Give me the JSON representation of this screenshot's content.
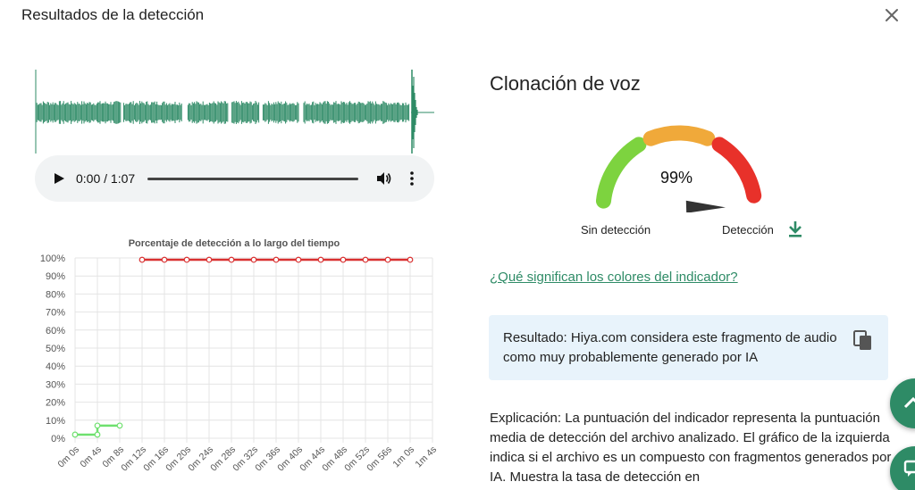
{
  "modal": {
    "title": "Resultados de la detección"
  },
  "player": {
    "time": "0:00 / 1:07"
  },
  "chart_data": {
    "type": "line",
    "title": "Porcentaje de detección a lo largo del tiempo",
    "xlabel": "",
    "ylabel": "",
    "categories": [
      "0m 0s",
      "0m 4s",
      "0m 8s",
      "0m 12s",
      "0m 16s",
      "0m 20s",
      "0m 24s",
      "0m 28s",
      "0m 32s",
      "0m 36s",
      "0m 40s",
      "0m 44s",
      "0m 48s",
      "0m 52s",
      "0m 56s",
      "1m 0s",
      "1m 4s"
    ],
    "y_ticks": [
      "0%",
      "10%",
      "20%",
      "30%",
      "40%",
      "50%",
      "60%",
      "70%",
      "80%",
      "90%",
      "100%"
    ],
    "ylim": [
      0,
      100
    ],
    "grid": true,
    "series": [
      {
        "color": "#6ee06e",
        "points": [
          [
            0,
            2
          ],
          [
            1,
            2
          ],
          [
            1,
            7
          ],
          [
            2,
            7
          ]
        ]
      },
      {
        "color": "#d93030",
        "points": [
          [
            3,
            99
          ],
          [
            4,
            99
          ],
          [
            5,
            99
          ],
          [
            6,
            99
          ],
          [
            7,
            99
          ],
          [
            8,
            99
          ],
          [
            9,
            99
          ],
          [
            10,
            99
          ],
          [
            11,
            99
          ],
          [
            12,
            99
          ],
          [
            13,
            99
          ],
          [
            14,
            99
          ],
          [
            15,
            99
          ]
        ]
      }
    ]
  },
  "result": {
    "section_title": "Clonación de voz",
    "gauge": {
      "value": "99%",
      "value_fraction": 0.99,
      "low_label": "Sin detección",
      "high_label": "Detección",
      "colors": [
        "#7dd33f",
        "#f0a93a",
        "#e8312a"
      ]
    },
    "colors_link": "¿Qué significan los colores del indicador?",
    "result_text": "Resultado: Hiya.com considera este fragmento de audio como muy probablemente generado por IA",
    "explanation": "Explicación: La puntuación del indicador representa la puntuación media de detección del archivo analizado. El gráfico de la izquierda indica si el archivo es un compuesto con fragmentos generados por IA. Muestra la tasa de detección en"
  },
  "icons": {
    "close": "close-icon",
    "play": "play-icon",
    "volume": "volume-icon",
    "more": "more-vert-icon",
    "download": "download-icon",
    "copy": "copy-icon",
    "scroll_top": "chevron-up-icon",
    "chat": "chat-icon"
  },
  "theme": {
    "accent": "#2e8b66",
    "result_bg": "#e8f3fb"
  }
}
